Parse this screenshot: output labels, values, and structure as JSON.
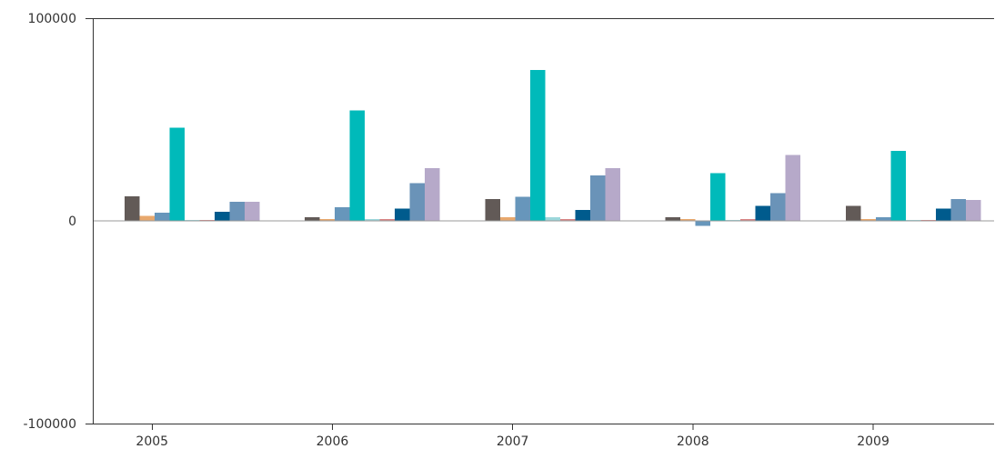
{
  "chart_data": {
    "type": "bar",
    "title": "",
    "xlabel": "",
    "ylabel": "",
    "categories": [
      "2005",
      "2006",
      "2007",
      "2008",
      "2009"
    ],
    "ylim": [
      -100000,
      100000
    ],
    "y_ticks": [
      {
        "value": 100000,
        "label": "100000"
      },
      {
        "value": 0,
        "label": "0"
      },
      {
        "value": -100000,
        "label": "-100000"
      }
    ],
    "grid": false,
    "legend": "none",
    "series": [
      {
        "color": "#625a57",
        "values": [
          12000,
          1800,
          10800,
          1800,
          7500
        ]
      },
      {
        "color": "#e8a86d",
        "values": [
          2500,
          1000,
          1800,
          1000,
          1000
        ]
      },
      {
        "color": "#6796bb",
        "values": [
          4000,
          6800,
          11800,
          -2500,
          1800
        ]
      },
      {
        "color": "#00baba",
        "values": [
          46000,
          54500,
          74500,
          23500,
          34500
        ]
      },
      {
        "color": "#9cd7db",
        "values": [
          400,
          1000,
          1800,
          400,
          400
        ]
      },
      {
        "color": "#d98585",
        "values": [
          400,
          1000,
          1000,
          1000,
          400
        ]
      },
      {
        "color": "#005b8d",
        "values": [
          4500,
          6000,
          5300,
          7500,
          6000
        ]
      },
      {
        "color": "#6a93b8",
        "values": [
          9500,
          18500,
          22500,
          13700,
          10800
        ]
      },
      {
        "color": "#b6a9c9",
        "values": [
          9500,
          26000,
          26000,
          32500,
          10300
        ]
      }
    ]
  }
}
